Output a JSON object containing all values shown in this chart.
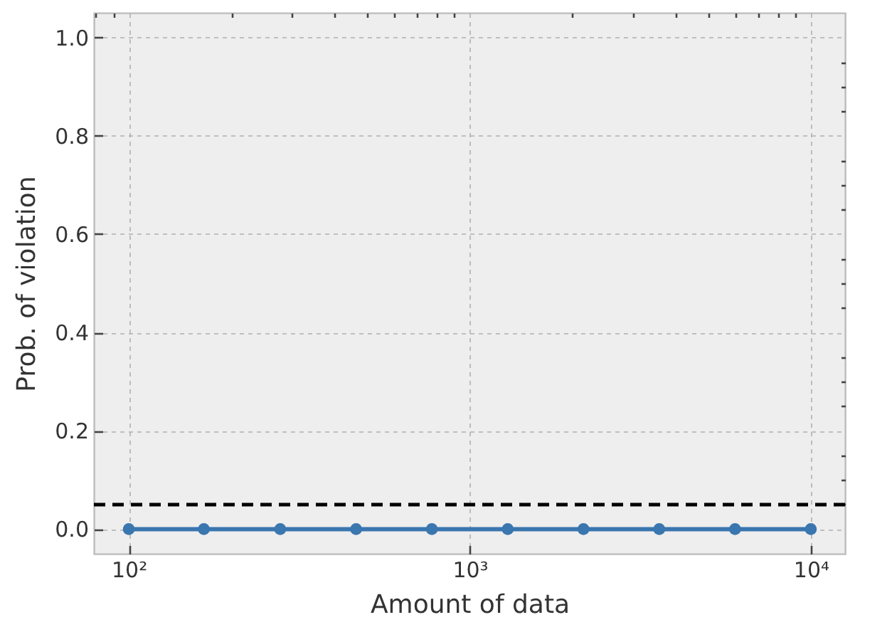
{
  "chart_data": {
    "type": "line",
    "xlabel": "Amount of data",
    "ylabel": "Prob. of violation",
    "x": [
      100,
      166,
      278,
      464,
      774,
      1292,
      2154,
      3594,
      5995,
      10000
    ],
    "series": [
      {
        "color": "#3a76af",
        "values": [
          0,
          0,
          0,
          0,
          0,
          0,
          0,
          0,
          0,
          0
        ]
      }
    ],
    "log": "x",
    "xlim": [
      79,
      12600
    ],
    "ylim": [
      -0.05,
      1.05
    ],
    "xticks": [
      {
        "value": 80,
        "label": null
      },
      {
        "value": 90,
        "label": null
      },
      {
        "value": 100,
        "label": "10²"
      },
      {
        "value": 200,
        "label": null
      },
      {
        "value": 300,
        "label": null
      },
      {
        "value": 400,
        "label": null
      },
      {
        "value": 500,
        "label": null
      },
      {
        "value": 600,
        "label": null
      },
      {
        "value": 700,
        "label": null
      },
      {
        "value": 800,
        "label": null
      },
      {
        "value": 900,
        "label": null
      },
      {
        "value": 1000,
        "label": "10³"
      },
      {
        "value": 2000,
        "label": null
      },
      {
        "value": 3000,
        "label": null
      },
      {
        "value": 4000,
        "label": null
      },
      {
        "value": 5000,
        "label": null
      },
      {
        "value": 6000,
        "label": null
      },
      {
        "value": 7000,
        "label": null
      },
      {
        "value": 8000,
        "label": null
      },
      {
        "value": 9000,
        "label": null
      },
      {
        "value": 10000,
        "label": "10⁴"
      }
    ],
    "yticks": [
      {
        "value": 0,
        "label": "0.0"
      },
      {
        "value": 0.05,
        "label": null
      },
      0.2,
      0.4,
      0.6,
      0.8,
      {
        "value": 1,
        "label": "1.0"
      },
      {
        "value": 0.1,
        "label": null
      },
      {
        "value": 0.15,
        "label": null
      },
      {
        "value": 0.25,
        "label": null
      },
      {
        "value": 0.3,
        "label": null
      },
      {
        "value": 0.35,
        "label": null
      },
      {
        "value": 0.45,
        "label": null
      },
      {
        "value": 0.5,
        "label": null
      },
      {
        "value": 0.55,
        "label": null
      },
      {
        "value": 0.65,
        "label": null
      },
      {
        "value": 0.7,
        "label": null
      },
      {
        "value": 0.75,
        "label": null
      },
      {
        "value": 0.85,
        "label": null
      },
      {
        "value": 0.9,
        "label": null
      },
      {
        "value": 0.95,
        "label": null
      }
    ],
    "grid": true,
    "marker": "circle",
    "line_style": "solid",
    "ref_lines": [
      {
        "axis": "y",
        "value": 0.05,
        "color": "#000000",
        "line_style": "dashed"
      }
    ]
  }
}
